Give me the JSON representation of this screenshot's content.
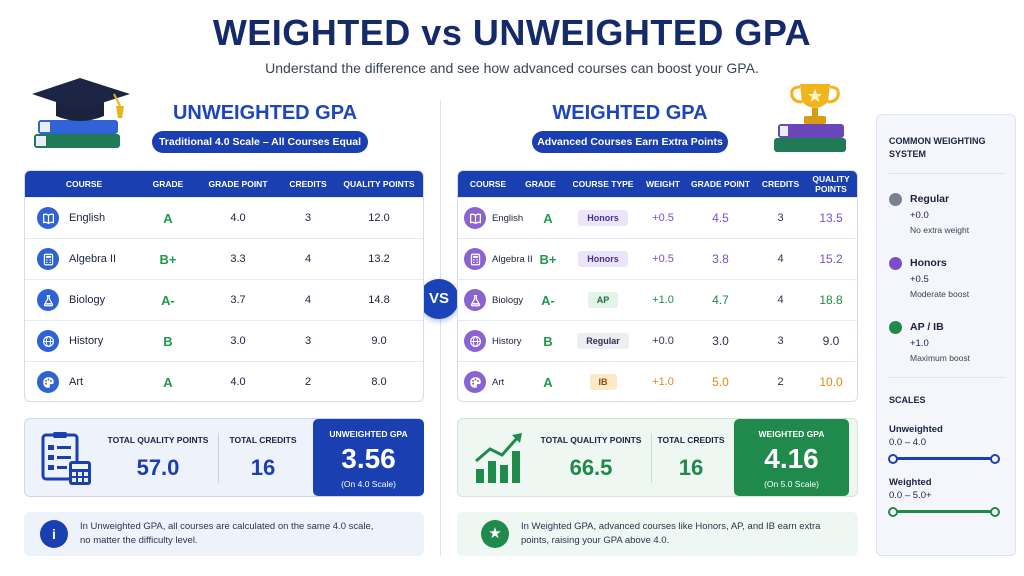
{
  "header": {
    "title": "WEIGHTED vs UNWEIGHTED GPA",
    "subtitle": "Understand the difference and see how advanced courses can boost your GPA."
  },
  "vs_label": "VS",
  "unweighted": {
    "title": "UNWEIGHTED GPA",
    "pill": "Traditional 4.0 Scale – All Courses Equal",
    "columns": [
      "COURSE",
      "GRADE",
      "GRADE POINT",
      "CREDITS",
      "QUALITY POINTS"
    ],
    "rows": [
      {
        "course": "English",
        "icon": "book-icon",
        "grade": "A",
        "grade_point": "4.0",
        "credits": "3",
        "quality_points": "12.0"
      },
      {
        "course": "Algebra II",
        "icon": "calculator-icon",
        "grade": "B+",
        "grade_point": "3.3",
        "credits": "4",
        "quality_points": "13.2"
      },
      {
        "course": "Biology",
        "icon": "flask-icon",
        "grade": "A-",
        "grade_point": "3.7",
        "credits": "4",
        "quality_points": "14.8"
      },
      {
        "course": "History",
        "icon": "globe-icon",
        "grade": "B",
        "grade_point": "3.0",
        "credits": "3",
        "quality_points": "9.0"
      },
      {
        "course": "Art",
        "icon": "palette-icon",
        "grade": "A",
        "grade_point": "4.0",
        "credits": "2",
        "quality_points": "8.0"
      }
    ],
    "summary": {
      "tqp_label": "TOTAL QUALITY POINTS",
      "tqp_value": "57.0",
      "credits_label": "TOTAL CREDITS",
      "credits_value": "16",
      "gpa_label": "UNWEIGHTED GPA",
      "gpa_value": "3.56",
      "gpa_scale": "(On 4.0 Scale)"
    },
    "note": "In Unweighted GPA, all courses are calculated on the same 4.0 scale, no matter the difficulty level."
  },
  "weighted": {
    "title": "WEIGHTED GPA",
    "pill": "Advanced Courses Earn Extra Points",
    "columns": [
      "COURSE",
      "GRADE",
      "COURSE TYPE",
      "WEIGHT",
      "GRADE POINT",
      "CREDITS",
      "QUALITY POINTS"
    ],
    "rows": [
      {
        "course": "English",
        "icon": "book-icon",
        "grade": "A",
        "type": "Honors",
        "weight": "+0.5",
        "grade_point": "4.5",
        "credits": "3",
        "quality_points": "13.5"
      },
      {
        "course": "Algebra II",
        "icon": "calculator-icon",
        "grade": "B+",
        "type": "Honors",
        "weight": "+0.5",
        "grade_point": "3.8",
        "credits": "4",
        "quality_points": "15.2"
      },
      {
        "course": "Biology",
        "icon": "flask-icon",
        "grade": "A-",
        "type": "AP",
        "weight": "+1.0",
        "grade_point": "4.7",
        "credits": "4",
        "quality_points": "18.8"
      },
      {
        "course": "History",
        "icon": "globe-icon",
        "grade": "B",
        "type": "Regular",
        "weight": "+0.0",
        "grade_point": "3.0",
        "credits": "3",
        "quality_points": "9.0"
      },
      {
        "course": "Art",
        "icon": "palette-icon",
        "grade": "A",
        "type": "IB",
        "weight": "+1.0",
        "grade_point": "5.0",
        "credits": "2",
        "quality_points": "10.0"
      }
    ],
    "summary": {
      "tqp_label": "TOTAL QUALITY POINTS",
      "tqp_value": "66.5",
      "credits_label": "TOTAL CREDITS",
      "credits_value": "16",
      "gpa_label": "WEIGHTED GPA",
      "gpa_value": "4.16",
      "gpa_scale": "(On 5.0 Scale)"
    },
    "note": "In Weighted GPA, advanced courses like Honors, AP, and IB earn extra points, raising your GPA above 4.0."
  },
  "sidebar": {
    "heading": "COMMON WEIGHTING SYSTEM",
    "systems": [
      {
        "name": "Regular",
        "plus": "+0.0",
        "desc": "No extra weight",
        "color": "#7b8090"
      },
      {
        "name": "Honors",
        "plus": "+0.5",
        "desc": "Moderate boost",
        "color": "#7b4fc9"
      },
      {
        "name": "AP / IB",
        "plus": "+1.0",
        "desc": "Maximum boost",
        "color": "#1f8a4c"
      }
    ],
    "scales_heading": "SCALES",
    "scales": [
      {
        "name": "Unweighted",
        "range": "0.0 – 4.0"
      },
      {
        "name": "Weighted",
        "range": "0.0 – 5.0+"
      }
    ]
  },
  "colors": {
    "brand_blue": "#1a3fb0",
    "green": "#1f8a4c",
    "honors_purple": "#7b4fc9",
    "ib_orange": "#e08a10"
  }
}
